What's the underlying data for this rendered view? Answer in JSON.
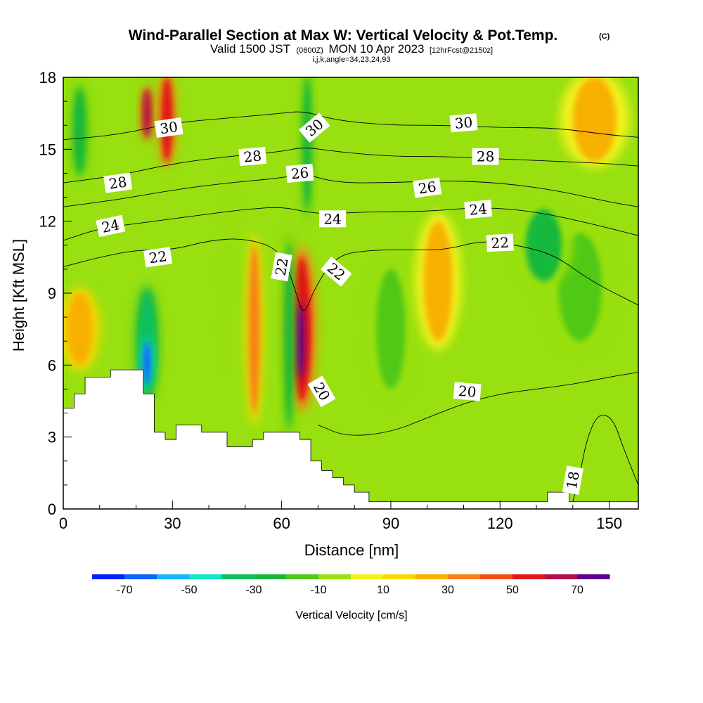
{
  "title": "Wind-Parallel Section at Max W: Vertical Velocity & Pot.Temp.",
  "title_mark": "(C)",
  "subtitle_valid": "Valid 1500 JST",
  "subtitle_utc": "(0600Z)",
  "subtitle_date": "MON 10 Apr 2023",
  "subtitle_fcst": "[12hrFcst@2150z]",
  "subtitle_ijk": "i,j,k,angle=34,23,24,93",
  "chart_data": {
    "type": "heatmap",
    "xlabel": "Distance [nm]",
    "ylabel": "Height [Kft MSL]",
    "xlim": [
      0,
      158
    ],
    "ylim": [
      0,
      18
    ],
    "x_ticks": [
      0,
      30,
      60,
      90,
      120,
      150
    ],
    "y_ticks": [
      0,
      3,
      6,
      9,
      12,
      15,
      18
    ],
    "x_tick_labels": [
      "0",
      "30",
      "60",
      "90",
      "120",
      "150"
    ],
    "y_tick_labels": [
      "0",
      "3",
      "6",
      "9",
      "12",
      "15",
      "18"
    ],
    "shaded_field": "Vertical Velocity [cm/s]",
    "colorbar": {
      "title": "Vertical Velocity [cm/s]",
      "bounds": [
        -80,
        -70,
        -60,
        -50,
        -40,
        -30,
        -20,
        -10,
        0,
        10,
        20,
        30,
        40,
        50,
        60,
        70,
        80
      ],
      "colors": [
        "#0020ff",
        "#0a64ff",
        "#10b8ff",
        "#10e8c8",
        "#10c060",
        "#18b83c",
        "#50c818",
        "#98e010",
        "#f2f21c",
        "#f8d800",
        "#f8b000",
        "#f88018",
        "#f05018",
        "#e01818",
        "#b01048",
        "#600090"
      ],
      "tick_labels": [
        "-70",
        "-50",
        "-30",
        "-10",
        "10",
        "30",
        "50",
        "70"
      ],
      "tick_values": [
        -70,
        -50,
        -30,
        -10,
        10,
        30,
        50,
        70
      ]
    },
    "terrain_kft": [
      [
        0,
        4.2
      ],
      [
        3,
        4.2
      ],
      [
        3,
        4.8
      ],
      [
        6,
        4.8
      ],
      [
        6,
        5.5
      ],
      [
        13,
        5.5
      ],
      [
        13,
        5.8
      ],
      [
        22,
        5.8
      ],
      [
        22,
        4.8
      ],
      [
        25,
        4.8
      ],
      [
        25,
        3.2
      ],
      [
        28,
        3.2
      ],
      [
        28,
        2.9
      ],
      [
        31,
        2.9
      ],
      [
        31,
        3.5
      ],
      [
        38,
        3.5
      ],
      [
        38,
        3.2
      ],
      [
        45,
        3.2
      ],
      [
        45,
        2.6
      ],
      [
        52,
        2.6
      ],
      [
        52,
        2.9
      ],
      [
        55,
        2.9
      ],
      [
        55,
        3.2
      ],
      [
        65,
        3.2
      ],
      [
        65,
        2.9
      ],
      [
        68,
        2.9
      ],
      [
        68,
        2.0
      ],
      [
        71,
        2.0
      ],
      [
        71,
        1.6
      ],
      [
        74,
        1.6
      ],
      [
        74,
        1.3
      ],
      [
        77,
        1.3
      ],
      [
        77,
        1.0
      ],
      [
        80,
        1.0
      ],
      [
        80,
        0.7
      ],
      [
        84,
        0.7
      ],
      [
        84,
        0.3
      ],
      [
        133,
        0.3
      ],
      [
        133,
        0.7
      ],
      [
        139,
        0.7
      ],
      [
        139,
        0.3
      ],
      [
        158,
        0.3
      ]
    ],
    "vertical_velocity_features": [
      {
        "x": [
          27,
          30
        ],
        "y": [
          14.5,
          18
        ],
        "value": 50
      },
      {
        "x": [
          22,
          24
        ],
        "y": [
          15.5,
          17.5
        ],
        "value": 60
      },
      {
        "x": [
          63,
          68
        ],
        "y": [
          4.5,
          10.5
        ],
        "value": 50
      },
      {
        "x": [
          64,
          66
        ],
        "y": [
          5.5,
          8.5
        ],
        "value": 75
      },
      {
        "x": [
          61,
          63
        ],
        "y": [
          3.5,
          11
        ],
        "value": -30
      },
      {
        "x": [
          21,
          25
        ],
        "y": [
          4.8,
          9
        ],
        "value": -40
      },
      {
        "x": [
          22,
          24
        ],
        "y": [
          5.2,
          7
        ],
        "value": -65
      },
      {
        "x": [
          66,
          68
        ],
        "y": [
          12.5,
          18
        ],
        "value": -30
      },
      {
        "x": [
          3,
          6
        ],
        "y": [
          14,
          17.5
        ],
        "value": -30
      },
      {
        "x": [
          51,
          54
        ],
        "y": [
          4,
          11
        ],
        "value": 30
      },
      {
        "x": [
          86,
          94
        ],
        "y": [
          5,
          10
        ],
        "value": -20
      },
      {
        "x": [
          136,
          148
        ],
        "y": [
          7,
          11.5
        ],
        "value": -20
      },
      {
        "x": [
          127,
          137
        ],
        "y": [
          9.5,
          12.5
        ],
        "value": -25
      },
      {
        "x": [
          1,
          8
        ],
        "y": [
          6,
          9
        ],
        "value": 25
      },
      {
        "x": [
          43,
          48
        ],
        "y": [
          6,
          14
        ],
        "value": -10
      },
      {
        "x": [
          99,
          107
        ],
        "y": [
          7,
          12
        ],
        "value": 20
      },
      {
        "x": [
          140,
          152
        ],
        "y": [
          14.5,
          18
        ],
        "value": 20
      }
    ],
    "potential_temperature_contours": [
      {
        "label": "18",
        "value": 18,
        "points": [
          [
            140,
            0.3
          ],
          [
            142,
            1.5
          ],
          [
            144,
            3.0
          ],
          [
            147,
            4.0
          ],
          [
            151,
            3.8
          ],
          [
            154,
            2.5
          ],
          [
            158,
            1.0
          ]
        ]
      },
      {
        "label": "20",
        "value": 20,
        "points": [
          [
            70,
            3.5
          ],
          [
            78,
            3.0
          ],
          [
            90,
            3.2
          ],
          [
            100,
            3.8
          ],
          [
            110,
            4.4
          ],
          [
            120,
            4.8
          ],
          [
            130,
            5.0
          ],
          [
            140,
            5.2
          ],
          [
            150,
            5.5
          ],
          [
            158,
            5.7
          ]
        ]
      },
      {
        "label": "22",
        "value": 22,
        "points": [
          [
            0,
            10.1
          ],
          [
            10,
            10.5
          ],
          [
            20,
            10.8
          ],
          [
            30,
            10.8
          ],
          [
            40,
            11.2
          ],
          [
            50,
            11.3
          ],
          [
            60,
            10.8
          ],
          [
            64,
            9.0
          ],
          [
            66,
            8.0
          ],
          [
            69,
            9.2
          ],
          [
            75,
            10.6
          ],
          [
            85,
            10.8
          ],
          [
            95,
            10.8
          ],
          [
            105,
            10.8
          ],
          [
            115,
            11.2
          ],
          [
            125,
            11.0
          ],
          [
            135,
            10.6
          ],
          [
            145,
            9.5
          ],
          [
            158,
            8.5
          ]
        ]
      },
      {
        "label": "24",
        "value": 24,
        "points": [
          [
            0,
            11.2
          ],
          [
            10,
            11.7
          ],
          [
            20,
            11.9
          ],
          [
            30,
            12.1
          ],
          [
            40,
            12.3
          ],
          [
            50,
            12.5
          ],
          [
            60,
            12.6
          ],
          [
            66,
            12.4
          ],
          [
            72,
            12.3
          ],
          [
            85,
            12.4
          ],
          [
            100,
            12.4
          ],
          [
            115,
            12.6
          ],
          [
            130,
            12.4
          ],
          [
            145,
            11.9
          ],
          [
            158,
            11.4
          ]
        ]
      },
      {
        "label": "26",
        "value": 26,
        "points": [
          [
            0,
            12.6
          ],
          [
            15,
            12.9
          ],
          [
            30,
            13.3
          ],
          [
            45,
            13.6
          ],
          [
            60,
            13.8
          ],
          [
            66,
            14.0
          ],
          [
            75,
            13.6
          ],
          [
            90,
            13.6
          ],
          [
            105,
            13.7
          ],
          [
            120,
            13.6
          ],
          [
            135,
            13.3
          ],
          [
            150,
            12.8
          ],
          [
            158,
            12.6
          ]
        ]
      },
      {
        "label": "28",
        "value": 28,
        "points": [
          [
            0,
            13.6
          ],
          [
            15,
            13.9
          ],
          [
            30,
            14.4
          ],
          [
            45,
            14.7
          ],
          [
            60,
            14.9
          ],
          [
            66,
            15.1
          ],
          [
            75,
            14.9
          ],
          [
            90,
            14.7
          ],
          [
            105,
            14.7
          ],
          [
            120,
            14.6
          ],
          [
            135,
            14.5
          ],
          [
            150,
            14.4
          ],
          [
            158,
            14.3
          ]
        ]
      },
      {
        "label": "30",
        "value": 30,
        "points": [
          [
            0,
            15.4
          ],
          [
            15,
            15.6
          ],
          [
            30,
            16.1
          ],
          [
            45,
            16.3
          ],
          [
            60,
            16.5
          ],
          [
            66,
            16.6
          ],
          [
            75,
            16.2
          ],
          [
            90,
            16.0
          ],
          [
            105,
            16.0
          ],
          [
            120,
            15.9
          ],
          [
            135,
            15.9
          ],
          [
            150,
            15.6
          ],
          [
            158,
            15.5
          ]
        ]
      }
    ],
    "contour_labels": [
      {
        "text": "30",
        "x": 29,
        "y": 15.9,
        "angle": 8
      },
      {
        "text": "28",
        "x": 15,
        "y": 13.6,
        "angle": 8
      },
      {
        "text": "24",
        "x": 13,
        "y": 11.8,
        "angle": 12
      },
      {
        "text": "22",
        "x": 26,
        "y": 10.5,
        "angle": 8
      },
      {
        "text": "28",
        "x": 52,
        "y": 14.7,
        "angle": 5
      },
      {
        "text": "26",
        "x": 65,
        "y": 14.0,
        "angle": 5
      },
      {
        "text": "30",
        "x": 69,
        "y": 15.9,
        "angle": 40
      },
      {
        "text": "24",
        "x": 74,
        "y": 12.1,
        "angle": 0
      },
      {
        "text": "22",
        "x": 60,
        "y": 10.1,
        "angle": 80
      },
      {
        "text": "22",
        "x": 75,
        "y": 9.9,
        "angle": -40
      },
      {
        "text": "20",
        "x": 71,
        "y": 4.9,
        "angle": -60
      },
      {
        "text": "20",
        "x": 111,
        "y": 4.9,
        "angle": -5
      },
      {
        "text": "30",
        "x": 110,
        "y": 16.1,
        "angle": 5
      },
      {
        "text": "28",
        "x": 116,
        "y": 14.7,
        "angle": 0
      },
      {
        "text": "26",
        "x": 100,
        "y": 13.4,
        "angle": 8
      },
      {
        "text": "24",
        "x": 114,
        "y": 12.5,
        "angle": 5
      },
      {
        "text": "22",
        "x": 120,
        "y": 11.1,
        "angle": 3
      },
      {
        "text": "18",
        "x": 140,
        "y": 1.2,
        "angle": 80
      }
    ]
  }
}
